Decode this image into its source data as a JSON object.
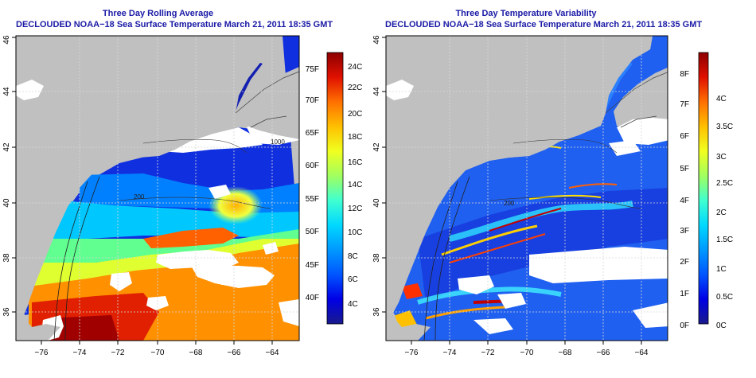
{
  "left_panel": {
    "title": "Three Day Rolling Average",
    "subtitle": "DECLOUDED NOAA−18 Sea Surface Temperature March 21, 2011 18:35 GMT",
    "lon_ticks": [
      "−76",
      "−74",
      "−72",
      "−70",
      "−68",
      "−66",
      "−64"
    ],
    "lat_ticks": [
      "36",
      "38",
      "40",
      "42",
      "44",
      "46"
    ],
    "colorbar": {
      "gradient": [
        "#1a1a8c",
        "#0000e6",
        "#0055ff",
        "#0099ff",
        "#00d8ff",
        "#40ffd0",
        "#a0ff60",
        "#f0ff20",
        "#ffc000",
        "#ff7000",
        "#e01000",
        "#8c0000"
      ],
      "c_labels": [
        "24C",
        "22C",
        "20C",
        "18C",
        "16C",
        "14C",
        "12C",
        "10C",
        "8C",
        "6C",
        "4C"
      ],
      "f_labels": [
        "75F",
        "70F",
        "65F",
        "60F",
        "55F",
        "50F",
        "45F",
        "40F"
      ]
    }
  },
  "right_panel": {
    "title": "Three Day Temperature Variability",
    "subtitle": "DECLOUDED NOAA−18 Sea Surface Temperature March 21, 2011 18:35 GMT",
    "lon_ticks": [
      "−76",
      "−74",
      "−72",
      "−70",
      "−68",
      "−66",
      "−64"
    ],
    "lat_ticks": [
      "36",
      "38",
      "40",
      "42",
      "44",
      "46"
    ],
    "colorbar": {
      "gradient": [
        "#1a1a8c",
        "#0000e6",
        "#0055ff",
        "#0099ff",
        "#00d8ff",
        "#40ffd0",
        "#a0ff60",
        "#f0ff20",
        "#ffc000",
        "#ff7000",
        "#e01000",
        "#8c0000"
      ],
      "f_labels": [
        "8F",
        "7F",
        "6F",
        "5F",
        "4F",
        "3F",
        "2F",
        "1F",
        "0F"
      ],
      "c_labels": [
        "4C",
        "3.5C",
        "3C",
        "2.5C",
        "2C",
        "1.5C",
        "1C",
        "0.5C",
        "0C"
      ]
    }
  },
  "contour_labels": [
    "200",
    "200",
    "1000"
  ],
  "colors": {
    "land": "#c0c0c0",
    "title": "#1a1aa6",
    "cloud": "#ffffff"
  }
}
